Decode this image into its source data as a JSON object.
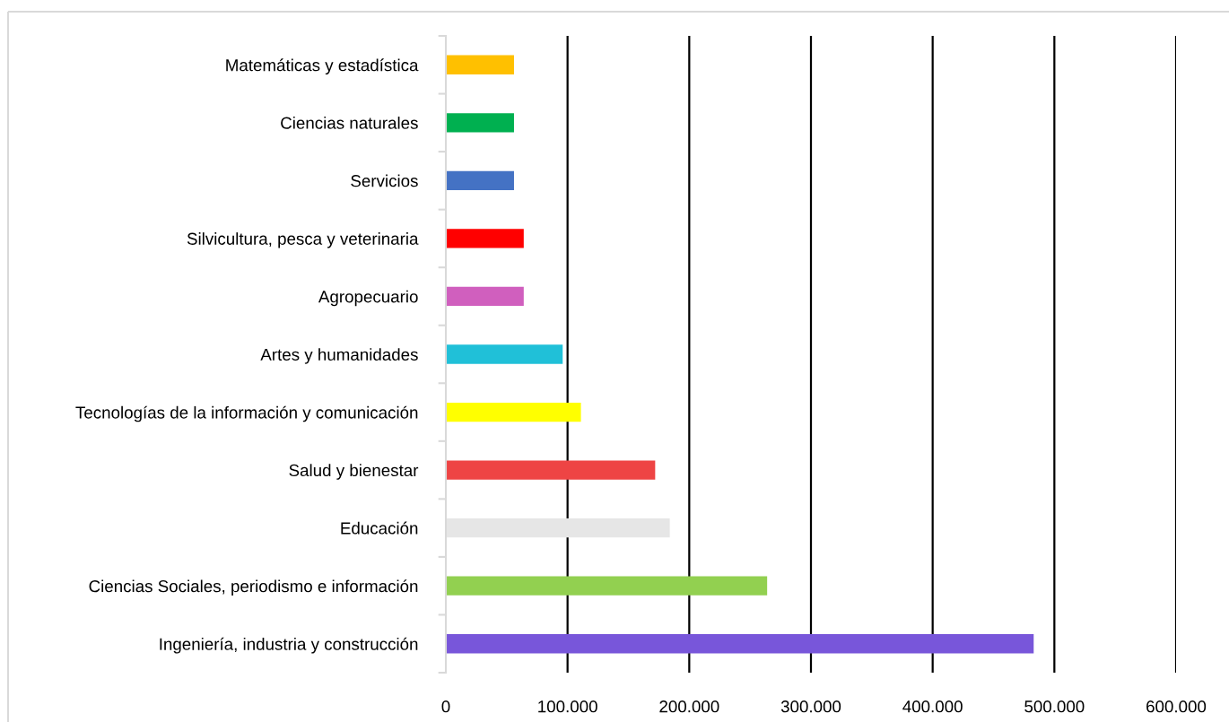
{
  "chart_data": {
    "type": "bar",
    "orientation": "horizontal",
    "categories": [
      "Matemáticas y estadística",
      "Ciencias naturales",
      "Servicios",
      "Silvicultura, pesca y veterinaria",
      "Agropecuario",
      "Artes y humanidades",
      "Tecnologías de la información y comunicación",
      "Salud y bienestar",
      "Educación",
      "Ciencias Sociales, periodismo e información",
      "Ingeniería, industria y construcción"
    ],
    "values": [
      56000,
      56000,
      56000,
      64000,
      64000,
      96000,
      111000,
      172000,
      184000,
      264000,
      483000
    ],
    "colors": [
      "#ffc000",
      "#00b050",
      "#4472c4",
      "#ff0000",
      "#d05fbe",
      "#20c0d8",
      "#ffff00",
      "#ee4444",
      "#e6e6e6",
      "#92d050",
      "#7856da"
    ],
    "xlim": [
      0,
      600000
    ],
    "xticks": [
      0,
      {
        "value": 100000,
        "label": "100.000"
      },
      {
        "value": 200000,
        "label": "200.000"
      },
      {
        "value": 300000,
        "label": "300.000"
      },
      {
        "value": 400000,
        "label": "400.000"
      },
      {
        "value": 500000,
        "label": "500.000"
      },
      {
        "value": 600000,
        "label": "600.000"
      }
    ],
    "grid": "x"
  }
}
